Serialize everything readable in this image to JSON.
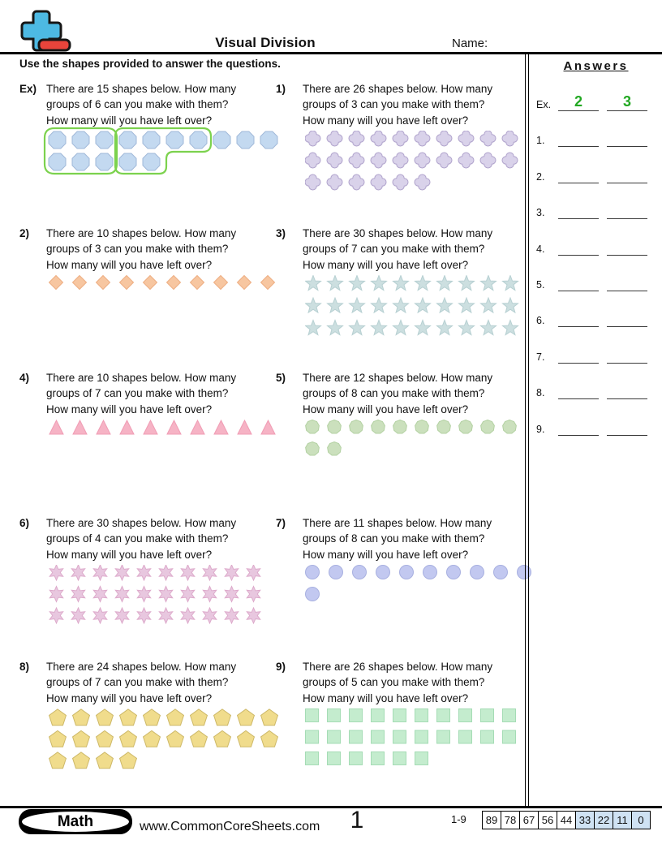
{
  "header": {
    "title": "Visual Division",
    "name_label": "Name:"
  },
  "instructions": "Use the shapes provided to answer the questions.",
  "colors": {
    "answer_green": "#22a822",
    "loop_green": "#7cd24e",
    "score_shaded": "#cfe2f3",
    "logo_blue": "#4db9e3",
    "logo_red": "#e8443b",
    "answer_line": "#3a3a3a"
  },
  "problems": [
    {
      "label": "Ex)",
      "lines": [
        "There are 15 shapes below. How many",
        "groups of 6 can you make with them?",
        "How many will you have left over?"
      ],
      "shape": "octagon",
      "rows": [
        10,
        5
      ],
      "fill": "#c3d9f0",
      "stroke": "#9fb8d8",
      "circled": true,
      "loop_color": "#7cd24e"
    },
    {
      "label": "1)",
      "lines": [
        "There are 26 shapes below. How many",
        "groups of 3 can you make with them?",
        "How many will you have left over?"
      ],
      "shape": "quatrefoil",
      "rows": [
        10,
        10,
        6
      ],
      "fill": "#d9d2ea",
      "stroke": "#b0a3cc",
      "circled": false
    },
    {
      "label": "2)",
      "lines": [
        "There are 10 shapes below. How many",
        "groups of 3 can you make with them?",
        "How many will you have left over?"
      ],
      "shape": "diamond",
      "rows": [
        10
      ],
      "fill": "#f7c6a0",
      "stroke": "#eeae82",
      "circled": false
    },
    {
      "label": "3)",
      "lines": [
        "There are 30 shapes below. How many",
        "groups of 7 can you make with them?",
        "How many will you have left over?"
      ],
      "shape": "star5",
      "rows": [
        10,
        10,
        10
      ],
      "fill": "#ccdfe0",
      "stroke": "#b7d0d2",
      "circled": false
    },
    {
      "label": "4)",
      "lines": [
        "There are 10 shapes below. How many",
        "groups of 7 can you make with them?",
        "How many will you have left over?"
      ],
      "shape": "triangle",
      "rows": [
        10
      ],
      "fill": "#f6b3c5",
      "stroke": "#f09cb4",
      "circled": false
    },
    {
      "label": "5)",
      "lines": [
        "There are 12 shapes below. How many",
        "groups of 8 can you make with them?",
        "How many will you have left over?"
      ],
      "shape": "nonagon",
      "rows": [
        10,
        2
      ],
      "fill": "#cbe0bd",
      "stroke": "#b3d1a2",
      "circled": false
    },
    {
      "label": "6)",
      "lines": [
        "There are 30 shapes below. How many",
        "groups of 4 can you make with them?",
        "How many will you have left over?"
      ],
      "shape": "star6",
      "rows": [
        10,
        10,
        10
      ],
      "fill": "#e8c7df",
      "stroke": "#ddaacb",
      "circled": false
    },
    {
      "label": "7)",
      "lines": [
        "There are 11 shapes below. How many",
        "groups of 8 can you make with them?",
        "How many will you have left over?"
      ],
      "shape": "circle",
      "rows": [
        10,
        1
      ],
      "fill": "#c2c8f0",
      "stroke": "#a8b0e0",
      "circled": false
    },
    {
      "label": "8)",
      "lines": [
        "There are 24 shapes below. How many",
        "groups of 7 can you make with them?",
        "How many will you have left over?"
      ],
      "shape": "pentagon",
      "rows": [
        10,
        10,
        4
      ],
      "fill": "#f0dc8c",
      "stroke": "#cdb867",
      "circled": false
    },
    {
      "label": "9)",
      "lines": [
        "There are 26 shapes below. How many",
        "groups of 5 can you make with them?",
        "How many will you have left over?"
      ],
      "shape": "square",
      "rows": [
        10,
        10,
        6
      ],
      "fill": "#c4ecce",
      "stroke": "#a5dcb5",
      "circled": false
    }
  ],
  "answers_panel": {
    "title": "Answers",
    "rows": [
      {
        "label": "Ex.",
        "value1": "2",
        "value2": "3"
      },
      {
        "label": "1.",
        "value1": "",
        "value2": ""
      },
      {
        "label": "2.",
        "value1": "",
        "value2": ""
      },
      {
        "label": "3.",
        "value1": "",
        "value2": ""
      },
      {
        "label": "4.",
        "value1": "",
        "value2": ""
      },
      {
        "label": "5.",
        "value1": "",
        "value2": ""
      },
      {
        "label": "6.",
        "value1": "",
        "value2": ""
      },
      {
        "label": "7.",
        "value1": "",
        "value2": ""
      },
      {
        "label": "8.",
        "value1": "",
        "value2": ""
      },
      {
        "label": "9.",
        "value1": "",
        "value2": ""
      }
    ]
  },
  "footer": {
    "badge_label": "Math",
    "website": "www.CommonCoreSheets.com",
    "page_number": "1",
    "score_table": {
      "range_label": "1-9",
      "cells": [
        {
          "value": "89",
          "shaded": false
        },
        {
          "value": "78",
          "shaded": false
        },
        {
          "value": "67",
          "shaded": false
        },
        {
          "value": "56",
          "shaded": false
        },
        {
          "value": "44",
          "shaded": false
        },
        {
          "value": "33",
          "shaded": true
        },
        {
          "value": "22",
          "shaded": true
        },
        {
          "value": "11",
          "shaded": true
        },
        {
          "value": "0",
          "shaded": true
        }
      ]
    }
  }
}
